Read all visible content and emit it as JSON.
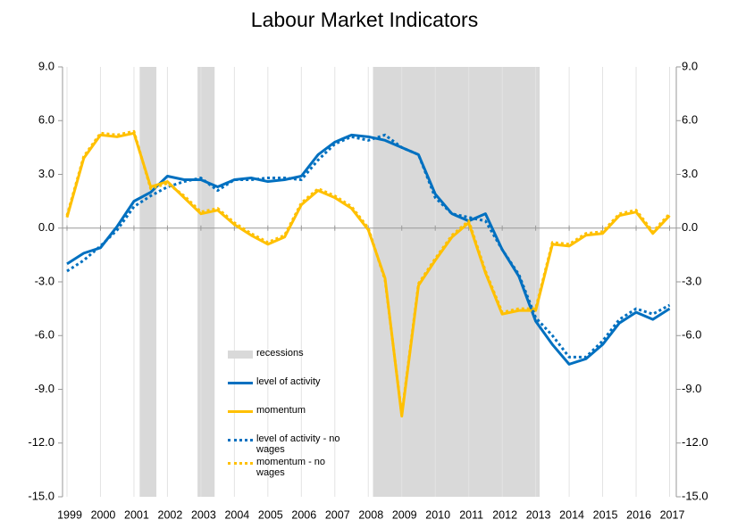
{
  "chart_data": {
    "type": "line",
    "title": "Labour Market Indicators",
    "x": [
      1999,
      1999.5,
      2000,
      2000.5,
      2001,
      2001.5,
      2002,
      2002.5,
      2003,
      2003.5,
      2004,
      2004.5,
      2005,
      2005.5,
      2006,
      2006.5,
      2007,
      2007.5,
      2008,
      2008.5,
      2009,
      2009.5,
      2010,
      2010.5,
      2011,
      2011.5,
      2012,
      2012.5,
      2013,
      2013.5,
      2014,
      2014.5,
      2015,
      2015.5,
      2016,
      2016.5,
      2017
    ],
    "xlim": [
      1999,
      2017.2
    ],
    "xticks": [
      1999,
      2000,
      2001,
      2002,
      2003,
      2004,
      2005,
      2006,
      2007,
      2008,
      2009,
      2010,
      2011,
      2012,
      2013,
      2014,
      2015,
      2016,
      2017
    ],
    "ylim": [
      -15,
      9
    ],
    "yticks": [
      {
        "value": 9,
        "label": "9.0"
      },
      {
        "value": 6,
        "label": "6.0"
      },
      {
        "value": 3,
        "label": "3.0"
      },
      {
        "value": 0,
        "label": "0.0"
      },
      {
        "value": -3,
        "label": "-3.0"
      },
      {
        "value": -6,
        "label": "-6.0"
      },
      {
        "value": -9,
        "label": "-9.0"
      },
      {
        "value": -12,
        "label": "-12.0"
      },
      {
        "value": -15,
        "label": "-15.0"
      }
    ],
    "y2lim": [
      -15,
      9
    ],
    "y2ticks": [
      {
        "value": 9,
        "label": "9.0"
      },
      {
        "value": 6,
        "label": "6.0"
      },
      {
        "value": 3,
        "label": "3.0"
      },
      {
        "value": 0,
        "label": "0.0"
      },
      {
        "value": -3,
        "label": "-3.0"
      },
      {
        "value": -6,
        "label": "-6.0"
      },
      {
        "value": -9,
        "label": "-9.0"
      },
      {
        "value": -12,
        "label": "-12.0"
      },
      {
        "value": -15,
        "label": "-15.0"
      }
    ],
    "grid": true,
    "recessions": {
      "name": "recessions",
      "color": "#d9d9d9",
      "ranges": [
        [
          2001.17,
          2001.67
        ],
        [
          2002.9,
          2003.41
        ],
        [
          2008.14,
          2013.12
        ]
      ]
    },
    "series": [
      {
        "name": "level of activity",
        "color": "#0070c0",
        "linestyle": "solid",
        "values": [
          -2.0,
          -1.4,
          -1.1,
          0.1,
          1.5,
          2.0,
          2.9,
          2.7,
          2.7,
          2.3,
          2.7,
          2.8,
          2.6,
          2.7,
          2.9,
          4.1,
          4.8,
          5.2,
          5.1,
          4.9,
          4.5,
          4.1,
          1.9,
          0.8,
          0.4,
          0.8,
          -1.2,
          -2.7,
          -5.2,
          -6.5,
          -7.6,
          -7.3,
          -6.5,
          -5.3,
          -4.7,
          -5.1,
          -4.5
        ]
      },
      {
        "name": "momentum",
        "color": "#ffc000",
        "linestyle": "solid",
        "values": [
          0.6,
          3.9,
          5.2,
          5.1,
          5.3,
          2.3,
          2.6,
          1.7,
          0.8,
          1.0,
          0.2,
          -0.4,
          -0.9,
          -0.5,
          1.3,
          2.1,
          1.7,
          1.1,
          -0.1,
          -2.8,
          -10.5,
          -3.2,
          -1.8,
          -0.5,
          0.3,
          -2.5,
          -4.8,
          -4.6,
          -4.6,
          -0.9,
          -1.0,
          -0.4,
          -0.3,
          0.7,
          0.9,
          -0.3,
          0.7
        ]
      },
      {
        "name": "level of activity - no wages",
        "color": "#0070c0",
        "linestyle": "dotted",
        "values": [
          -2.4,
          -1.8,
          -1.0,
          -0.1,
          1.2,
          1.8,
          2.3,
          2.6,
          2.8,
          2.1,
          2.7,
          2.7,
          2.8,
          2.8,
          2.7,
          3.8,
          4.7,
          5.1,
          4.9,
          5.2,
          4.5,
          4.1,
          1.7,
          0.8,
          0.6,
          0.4,
          -1.2,
          -2.6,
          -5.0,
          -6.0,
          -7.2,
          -7.2,
          -6.3,
          -5.1,
          -4.5,
          -4.8,
          -4.3
        ]
      },
      {
        "name": "momentum - no wages",
        "color": "#ffc000",
        "linestyle": "dotted",
        "values": [
          0.7,
          4.0,
          5.3,
          5.2,
          5.4,
          2.2,
          2.5,
          1.8,
          0.9,
          1.1,
          0.3,
          -0.3,
          -0.8,
          -0.4,
          1.4,
          2.2,
          1.8,
          1.2,
          0.0,
          -2.9,
          -10.4,
          -3.1,
          -1.7,
          -0.4,
          0.4,
          -2.4,
          -4.7,
          -4.5,
          -4.5,
          -0.8,
          -0.9,
          -0.3,
          -0.2,
          0.8,
          1.0,
          -0.2,
          0.8
        ]
      }
    ]
  }
}
